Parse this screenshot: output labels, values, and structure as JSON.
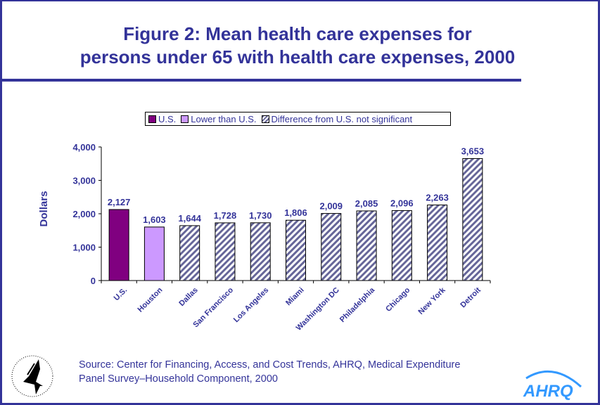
{
  "chart_data": {
    "type": "bar",
    "title": "Figure 2: Mean health care expenses for persons under 65 with health care expenses, 2000",
    "title_lines": [
      "Figure 2: Mean health care expenses for",
      "persons under 65 with health care expenses, 2000"
    ],
    "ylabel": "Dollars",
    "xlabel": "",
    "ylim": [
      0,
      4000
    ],
    "yticks": [
      0,
      1000,
      2000,
      3000,
      4000
    ],
    "ytick_labels": [
      "0",
      "1,000",
      "2,000",
      "3,000",
      "4,000"
    ],
    "categories": [
      "U.S.",
      "Houston",
      "Dallas",
      "San Francisco",
      "Los Angeles",
      "Miami",
      "Washington DC",
      "Philadelphia",
      "Chicago",
      "New York",
      "Detroit"
    ],
    "values": [
      2127,
      1603,
      1644,
      1728,
      1730,
      1806,
      2009,
      2085,
      2096,
      2263,
      3653
    ],
    "data_labels": [
      "2,127",
      "1,603",
      "1,644",
      "1,728",
      "1,730",
      "1,806",
      "2,009",
      "2,085",
      "2,096",
      "2,263",
      "3,653"
    ],
    "groups": [
      "us",
      "lower",
      "ns",
      "ns",
      "ns",
      "ns",
      "ns",
      "ns",
      "ns",
      "ns",
      "ns"
    ],
    "legend": {
      "position": "top",
      "items": [
        {
          "key": "us",
          "label": "U.S.",
          "color": "#800080"
        },
        {
          "key": "lower",
          "label": "Lower than U.S.",
          "color": "#CC99FF"
        },
        {
          "key": "ns",
          "label": "Difference from U.S. not significant",
          "color": "#666699",
          "pattern": "diagonal-hatch"
        }
      ]
    },
    "grid": false
  },
  "source": {
    "line1": "Source: Center for Financing, Access, and Cost Trends, AHRQ, Medical Expenditure",
    "line2": "Panel Survey–Household Component, 2000"
  },
  "logos": {
    "hhs": "HHS eagle seal",
    "ahrq": "AHRQ"
  },
  "colors": {
    "text": "#333399",
    "frame": "#333399"
  }
}
